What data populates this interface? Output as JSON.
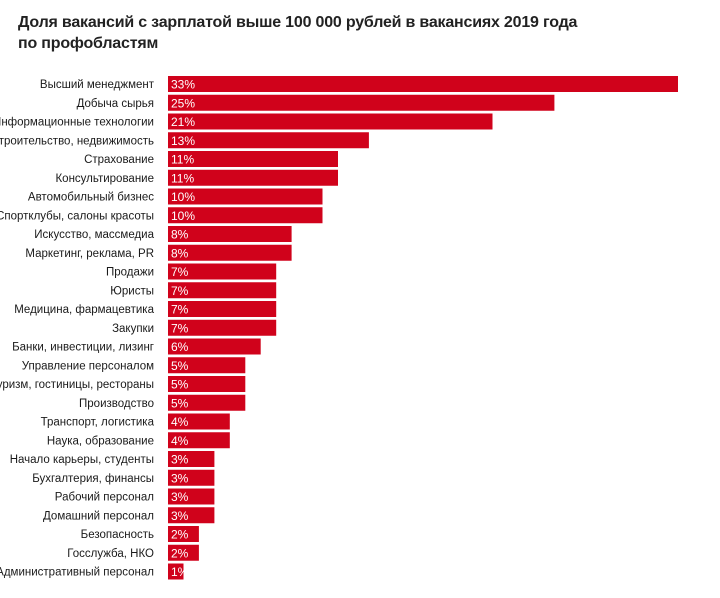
{
  "chart_data": {
    "type": "bar",
    "orientation": "horizontal",
    "title_lines": [
      "Доля вакансий с зарплатой выше 100 000 рублей в вакансиях 2019 года",
      "по профобластям"
    ],
    "categories": [
      "Высший менеджмент",
      "Добыча сырья",
      "Информационные технологии",
      "Строительство, недвижимость",
      "Страхование",
      "Консультирование",
      "Автомобильный бизнес",
      "Спортклубы, салоны красоты",
      "Искусство, массмедиа",
      "Маркетинг, реклама, PR",
      "Продажи",
      "Юристы",
      "Медицина, фармацевтика",
      "Закупки",
      "Банки, инвестиции, лизинг",
      "Управление персоналом",
      "Туризм, гостиницы, рестораны",
      "Производство",
      "Транспорт, логистика",
      "Наука, образование",
      "Начало карьеры, студенты",
      "Бухгалтерия, финансы",
      "Рабочий персонал",
      "Домашний персонал",
      "Безопасность",
      "Госслужба, НКО",
      "Административный персонал"
    ],
    "values": [
      33,
      25,
      21,
      13,
      11,
      11,
      10,
      10,
      8,
      8,
      7,
      7,
      7,
      7,
      6,
      5,
      5,
      5,
      4,
      4,
      3,
      3,
      3,
      3,
      2,
      2,
      1
    ],
    "value_labels": [
      "33%",
      "25%",
      "21%",
      "13%",
      "11%",
      "11%",
      "10%",
      "10%",
      "8%",
      "8%",
      "7%",
      "7%",
      "7%",
      "7%",
      "6%",
      "5%",
      "5%",
      "5%",
      "4%",
      "4%",
      "3%",
      "3%",
      "3%",
      "3%",
      "2%",
      "2%",
      "1%"
    ],
    "xlim": [
      0,
      33
    ],
    "unit": "%",
    "grid": false,
    "bar_color": "#d0021b",
    "label_color": "#ffffff"
  }
}
